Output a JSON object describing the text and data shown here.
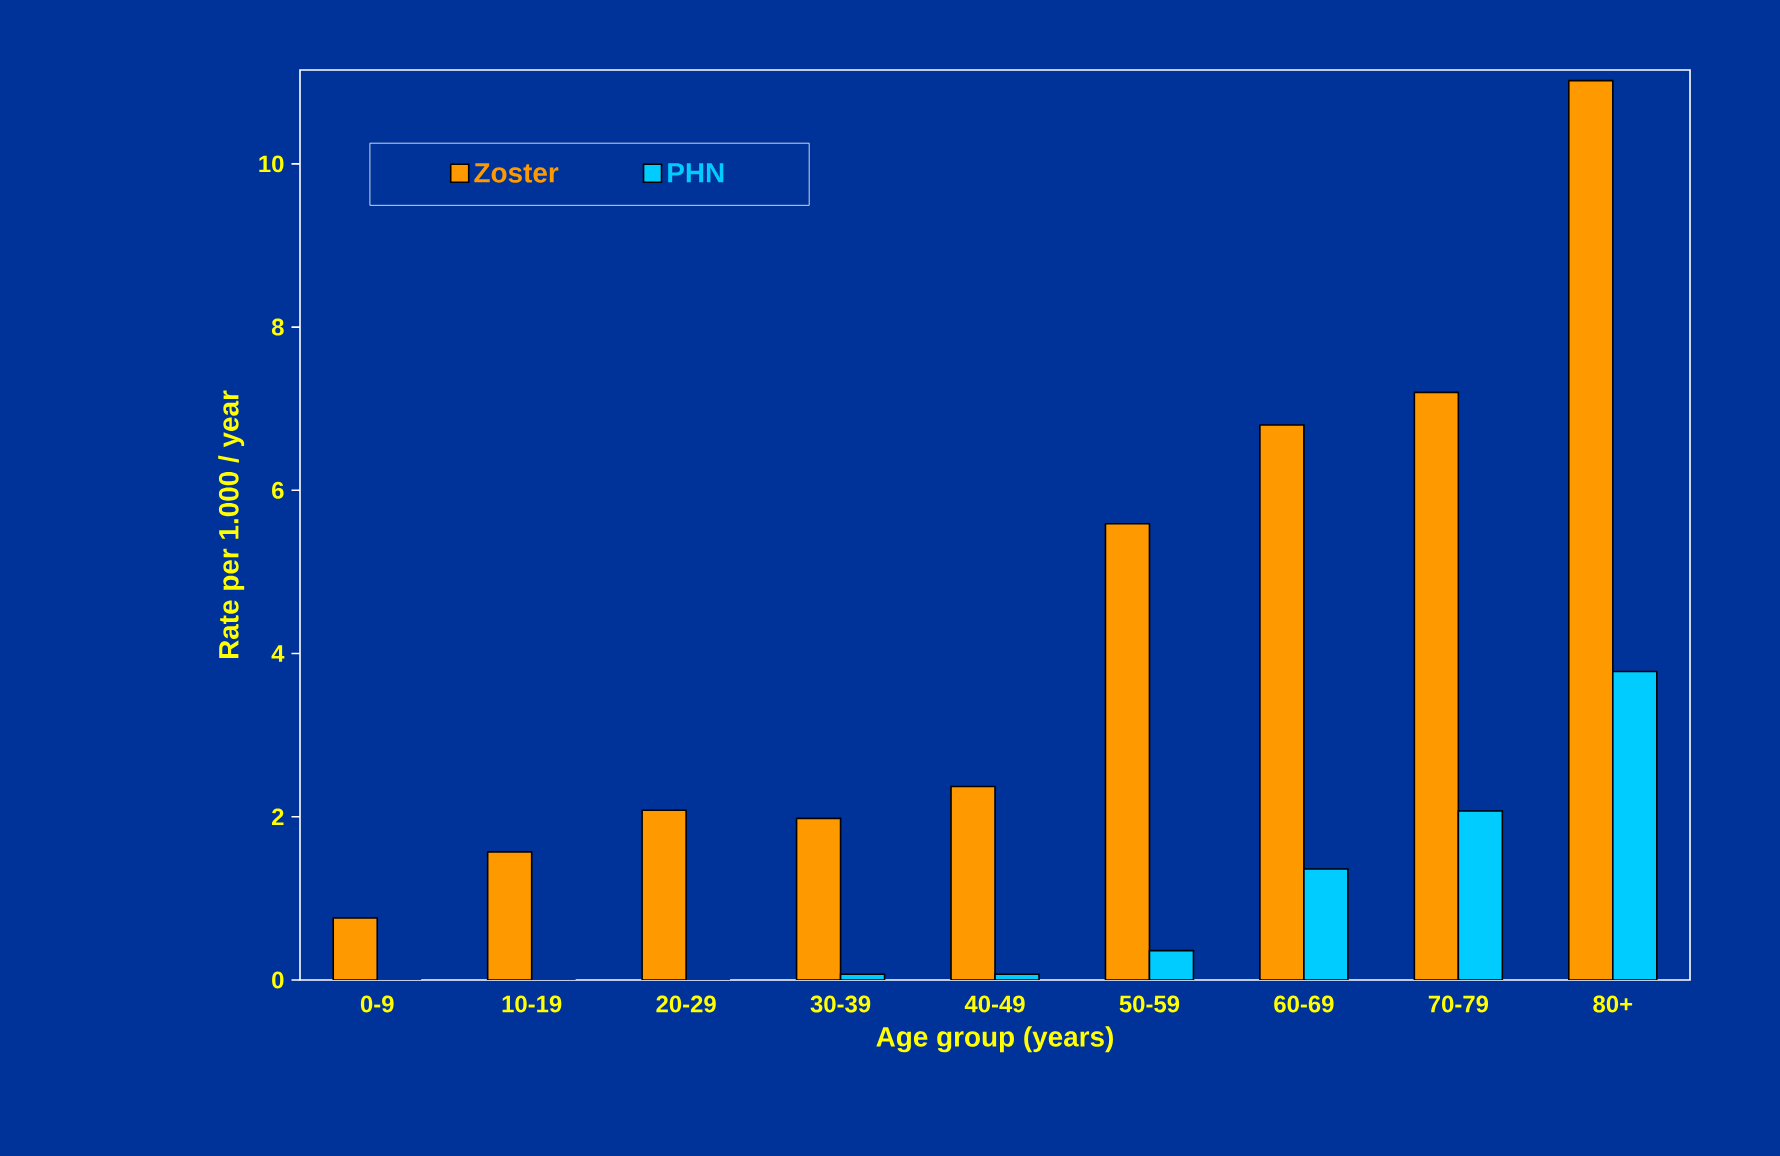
{
  "chart_data": {
    "type": "bar",
    "xlabel": "Age group (years)",
    "ylabel": "Rate per 1.000 / year",
    "categories": [
      "0-9",
      "10-19",
      "20-29",
      "30-39",
      "40-49",
      "50-59",
      "60-69",
      "70-79",
      "80+"
    ],
    "series": [
      {
        "name": "Zoster",
        "color": "#ff9900",
        "values": [
          0.76,
          1.57,
          2.08,
          1.98,
          2.37,
          5.59,
          6.8,
          7.2,
          11.02
        ]
      },
      {
        "name": "PHN",
        "color": "#00ccff",
        "values": [
          0,
          0,
          0,
          0.07,
          0.07,
          0.36,
          1.36,
          2.07,
          3.78
        ]
      }
    ],
    "ylim": [
      0,
      11.15
    ],
    "yticks": [
      0,
      2,
      4,
      6,
      8,
      10
    ],
    "grid": false,
    "legend": "top left"
  }
}
